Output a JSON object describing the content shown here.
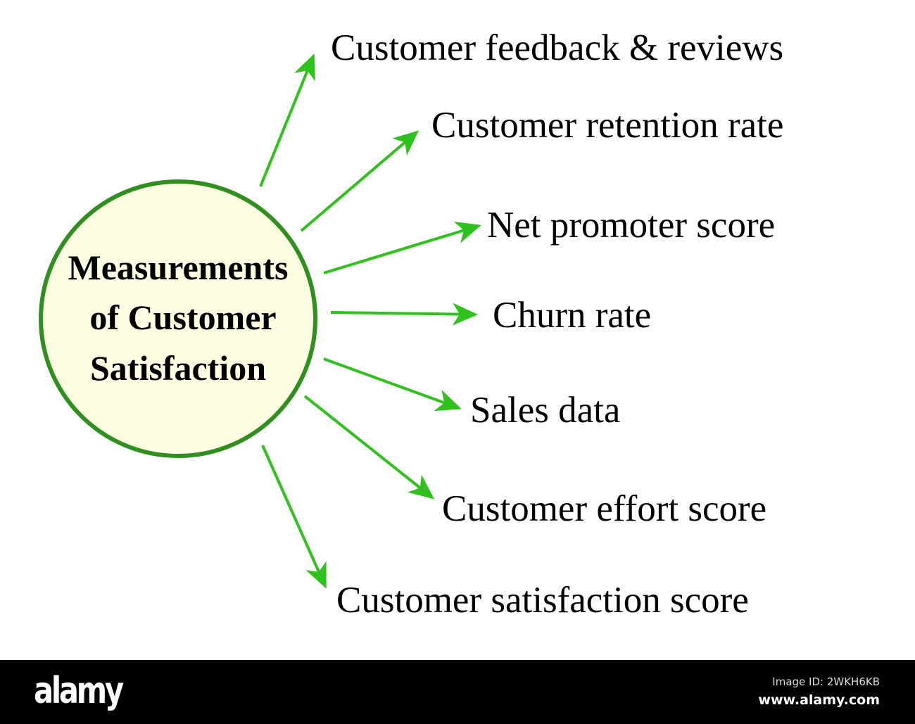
{
  "diagram": {
    "center_lines": [
      "Measurements",
      "of Customer",
      "Satisfaction"
    ],
    "items": [
      "Customer feedback & reviews",
      "Customer retention rate",
      "Net promoter score",
      "Churn rate",
      "Sales data",
      "Customer effort score",
      "Customer satisfaction score"
    ],
    "colors": {
      "circle_stroke": "#2f8f1f",
      "circle_fill": "#fdfde2",
      "arrow": "#2fc21c",
      "text": "#000000"
    }
  },
  "footer": {
    "logo": "alamy",
    "image_id": "Image ID: 2WKH6KB",
    "site": "www.alamy.com"
  }
}
